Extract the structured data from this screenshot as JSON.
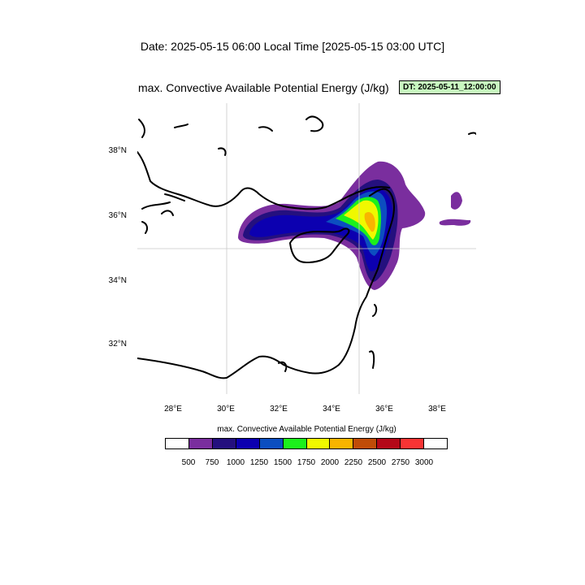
{
  "header": {
    "date_line": "Date: 2025-05-15  06:00 Local Time [2025-05-15  03:00 UTC]",
    "title": "max. Convective Available Potential Energy   (J/kg)",
    "dt_badge": "DT: 2025-05-11_12:00:00"
  },
  "map": {
    "lon_ticks": [
      "28°E",
      "30°E",
      "32°E",
      "34°E",
      "36°E",
      "38°E"
    ],
    "lat_ticks": [
      "38°N",
      "36°N",
      "34°N",
      "32°N"
    ],
    "lon_range": [
      26.6,
      39.4
    ],
    "lat_range": [
      30.45,
      39.45
    ]
  },
  "colorbar": {
    "title": "max. Convective Available Potential Energy  (J/kg)",
    "labels": [
      "500",
      "750",
      "1000",
      "1250",
      "1500",
      "1750",
      "2000",
      "2250",
      "2500",
      "2750",
      "3000"
    ],
    "colors": [
      "#ffffff",
      "#7a2e9e",
      "#24107e",
      "#0c00b0",
      "#0c4ec0",
      "#1cf01c",
      "#f0f800",
      "#f8b400",
      "#c04c08",
      "#b40818",
      "#f83434",
      "#ffffff"
    ]
  }
}
